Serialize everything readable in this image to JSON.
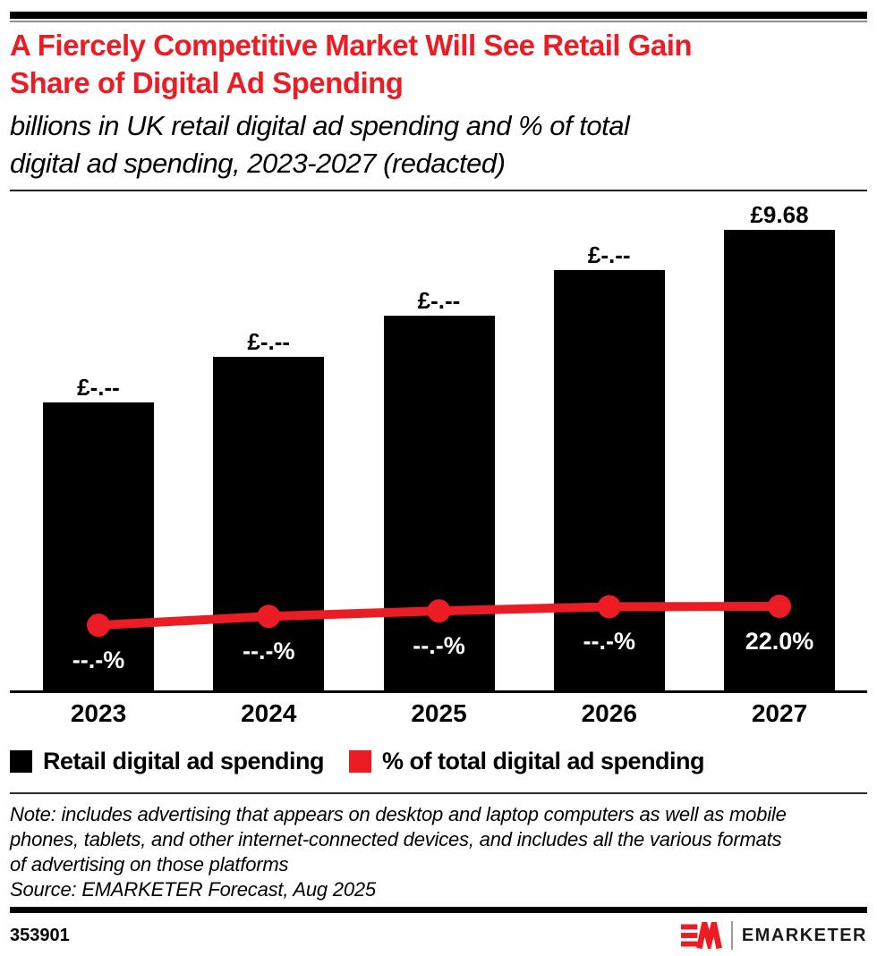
{
  "header": {
    "title_lines": [
      "A Fiercely Competitive Market Will See Retail Gain",
      "Share of Digital Ad Spending"
    ],
    "subtitle_lines": [
      "billions in UK retail digital ad spending and % of total",
      "digital ad spending, 2023-2027 (redacted)"
    ]
  },
  "chart_data": {
    "type": "bar",
    "title": "A Fiercely Competitive Market Will See Retail Gain Share of Digital Ad Spending",
    "subtitle": "billions in UK retail digital ad spending and % of total digital ad spending, 2023-2027 (redacted)",
    "categories": [
      "2023",
      "2024",
      "2025",
      "2026",
      "2027"
    ],
    "xlabel": "",
    "ylabel": "",
    "grid": false,
    "legend_position": "bottom",
    "series": [
      {
        "name": "Retail digital ad spending",
        "type": "bar",
        "unit": "billions £",
        "color": "#000000",
        "labels": [
          "£-.--",
          "£-.--",
          "£-.--",
          "£-.--",
          "£9.68"
        ],
        "values_est": [
          6.06,
          7.01,
          7.88,
          8.83,
          9.68
        ],
        "ymax": 9.68,
        "note": "values 2023-2026 redacted in source image"
      },
      {
        "name": "% of total digital ad spending",
        "type": "line",
        "unit": "% of total digital ad spending",
        "color": "#ec1c24",
        "labels": [
          "--.-%",
          "--.-%",
          "--.-%",
          "--.-%",
          "22.0%"
        ],
        "values_est": [
          17.1,
          19.4,
          20.8,
          21.9,
          22.0
        ],
        "note": "values 2023-2026 redacted in source image"
      }
    ]
  },
  "legend": {
    "items": [
      {
        "label": "Retail digital ad spending",
        "color": "#000000"
      },
      {
        "label": "% of total digital ad spending",
        "color": "#ec1c24"
      }
    ]
  },
  "footer": {
    "note_lines": [
      "Note: includes advertising that appears on desktop and laptop computers as well as mobile",
      "phones, tablets, and other internet-connected devices, and includes all the various formats",
      "of advertising on those platforms"
    ],
    "source": "Source: EMARKETER Forecast, Aug 2025",
    "chart_id": "353901",
    "brand_name": "EMARKETER"
  },
  "icons": {
    "brand_mark": "emarketer-em-monogram"
  },
  "colors": {
    "accent_red": "#ec1c24",
    "bar_black": "#000000",
    "rule_gray": "#8e8e8e"
  }
}
